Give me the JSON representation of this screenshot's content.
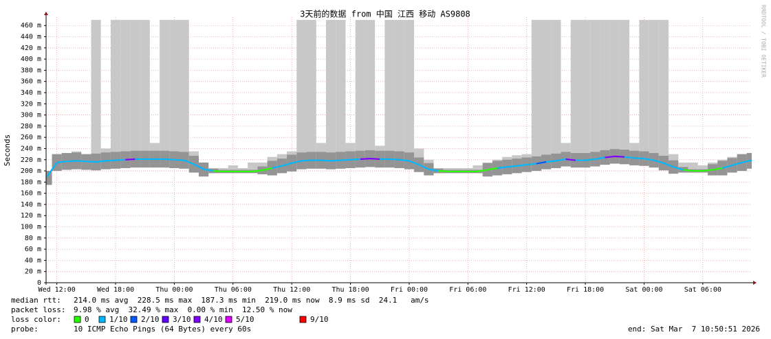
{
  "chart_data": {
    "type": "smokeping",
    "title": "3天前的数据 from 中国 江西 移动 AS9808",
    "ylabel": "Seconds",
    "watermark": "RRDTOOL / TOBI OETIKER",
    "xlim": [
      -1.1,
      71
    ],
    "xticks": [
      {
        "value": 0,
        "label": "Wed 12:00"
      },
      {
        "value": 6,
        "label": "Wed 18:00"
      },
      {
        "value": 12,
        "label": "Thu 00:00"
      },
      {
        "value": 18,
        "label": "Thu 06:00"
      },
      {
        "value": 24,
        "label": "Thu 12:00"
      },
      {
        "value": 30,
        "label": "Thu 18:00"
      },
      {
        "value": 36,
        "label": "Fri 00:00"
      },
      {
        "value": 42,
        "label": "Fri 06:00"
      },
      {
        "value": 48,
        "label": "Fri 12:00"
      },
      {
        "value": 54,
        "label": "Fri 18:00"
      },
      {
        "value": 60,
        "label": "Sat 00:00"
      },
      {
        "value": 66,
        "label": "Sat 06:00"
      }
    ],
    "ylim": [
      0,
      475
    ],
    "yticks": [
      0,
      {
        "value": 20,
        "label": "20 m"
      },
      {
        "value": 40,
        "label": "40 m"
      },
      {
        "value": 60,
        "label": "60 m"
      },
      {
        "value": 80,
        "label": "80 m"
      },
      {
        "value": 100,
        "label": "100 m"
      },
      {
        "value": 120,
        "label": "120 m"
      },
      {
        "value": 140,
        "label": "140 m"
      },
      {
        "value": 160,
        "label": "160 m"
      },
      {
        "value": 180,
        "label": "180 m"
      },
      {
        "value": 200,
        "label": "200 m"
      },
      {
        "value": 220,
        "label": "220 m"
      },
      {
        "value": 240,
        "label": "240 m"
      },
      {
        "value": 260,
        "label": "260 m"
      },
      {
        "value": 280,
        "label": "280 m"
      },
      {
        "value": 300,
        "label": "300 m"
      },
      {
        "value": 320,
        "label": "320 m"
      },
      {
        "value": 340,
        "label": "340 m"
      },
      {
        "value": 360,
        "label": "360 m"
      },
      {
        "value": 380,
        "label": "380 m"
      },
      {
        "value": 400,
        "label": "400 m"
      },
      {
        "value": 420,
        "label": "420 m"
      },
      {
        "value": 440,
        "label": "440 m"
      },
      {
        "value": 460,
        "label": "460 m"
      }
    ],
    "grid": true,
    "x": [
      -1,
      0,
      1,
      2,
      3,
      4,
      5,
      6,
      7,
      8,
      9,
      10,
      11,
      12,
      13,
      14,
      15,
      16,
      17,
      18,
      19,
      20,
      21,
      22,
      23,
      24,
      25,
      26,
      27,
      28,
      29,
      30,
      31,
      32,
      33,
      34,
      35,
      36,
      37,
      38,
      39,
      40,
      41,
      42,
      43,
      44,
      45,
      46,
      47,
      48,
      49,
      50,
      51,
      52,
      53,
      54,
      55,
      56,
      57,
      58,
      59,
      60,
      61,
      62,
      63,
      64,
      65,
      66,
      67,
      68,
      69,
      70,
      71
    ],
    "values": [
      190,
      215,
      217,
      218,
      217,
      216,
      218,
      219,
      220,
      221,
      221,
      221,
      221,
      220,
      219,
      212,
      203,
      200,
      199,
      199,
      199,
      199,
      201,
      205,
      209,
      214,
      218,
      219,
      219,
      218,
      219,
      220,
      221,
      222,
      221,
      221,
      220,
      218,
      211,
      203,
      200,
      199,
      199,
      199,
      199,
      202,
      205,
      207,
      209,
      211,
      213,
      216,
      218,
      221,
      219,
      219,
      221,
      224,
      226,
      225,
      223,
      222,
      219,
      214,
      207,
      202,
      200,
      200,
      202,
      205,
      210,
      215,
      219
    ],
    "point_colors": [
      "#00b8ff",
      "#00b8ff",
      "#00b8ff",
      "#00b8ff",
      "#00b8ff",
      "#00b8ff",
      "#00b8ff",
      "#00b8ff",
      "#7e00ff",
      "#00b8ff",
      "#00b8ff",
      "#00b8ff",
      "#00b8ff",
      "#00b8ff",
      "#00b8ff",
      "#00b8ff",
      "#00b8ff",
      "#26ff00",
      "#26ff00",
      "#26ff00",
      "#26ff00",
      "#26ff00",
      "#26ff00",
      "#00b8ff",
      "#00b8ff",
      "#00b8ff",
      "#00b8ff",
      "#00b8ff",
      "#00b8ff",
      "#00b8ff",
      "#00b8ff",
      "#00b8ff",
      "#7e00ff",
      "#7e00ff",
      "#00b8ff",
      "#00b8ff",
      "#00b8ff",
      "#00b8ff",
      "#00b8ff",
      "#00b8ff",
      "#26ff00",
      "#26ff00",
      "#26ff00",
      "#26ff00",
      "#26ff00",
      "#26ff00",
      "#00b8ff",
      "#00b8ff",
      "#00b8ff",
      "#00b8ff",
      "#0059ff",
      "#00b8ff",
      "#00b8ff",
      "#7e00ff",
      "#00b8ff",
      "#00b8ff",
      "#00b8ff",
      "#7e00ff",
      "#7e00ff",
      "#00b8ff",
      "#00b8ff",
      "#00b8ff",
      "#00b8ff",
      "#00b8ff",
      "#00b8ff",
      "#26ff00",
      "#26ff00",
      "#26ff00",
      "#26ff00",
      "#00b8ff",
      "#00b8ff",
      "#00b8ff",
      "#00b8ff"
    ],
    "smoke": {
      "low": [
        175,
        200,
        202,
        203,
        202,
        201,
        203,
        204,
        205,
        206,
        206,
        206,
        206,
        205,
        204,
        197,
        190,
        196,
        196,
        196,
        196,
        196,
        194,
        192,
        196,
        199,
        203,
        204,
        204,
        203,
        204,
        205,
        206,
        207,
        206,
        206,
        205,
        203,
        198,
        192,
        196,
        196,
        196,
        196,
        196,
        190,
        192,
        194,
        196,
        198,
        200,
        203,
        205,
        208,
        206,
        206,
        208,
        211,
        213,
        212,
        210,
        209,
        206,
        201,
        195,
        197,
        197,
        197,
        192,
        192,
        197,
        200,
        204
      ],
      "high": [
        200,
        230,
        232,
        235,
        230,
        470,
        240,
        470,
        470,
        470,
        470,
        250,
        470,
        470,
        470,
        235,
        215,
        205,
        205,
        210,
        205,
        215,
        215,
        225,
        230,
        235,
        470,
        470,
        250,
        470,
        470,
        250,
        470,
        470,
        245,
        470,
        470,
        470,
        240,
        220,
        205,
        205,
        205,
        205,
        210,
        215,
        220,
        225,
        228,
        230,
        470,
        470,
        470,
        250,
        470,
        470,
        470,
        470,
        470,
        470,
        250,
        470,
        470,
        470,
        230,
        215,
        215,
        210,
        215,
        220,
        225,
        230,
        232
      ],
      "color": "#c8c8c8"
    },
    "legend": {
      "median_label": "median rtt:",
      "median_text": "214.0 ms avg  228.5 ms max  187.3 ms min  219.0 ms now  8.9 ms sd  24.1   am/s",
      "loss_label": "packet loss:",
      "loss_text": "9.98 % avg  32.49 % max  0.00 % min  12.50 % now",
      "color_label": "loss color:",
      "loss_colors": [
        {
          "label": "0",
          "color": "#26ff00"
        },
        {
          "label": "1/10",
          "color": "#00b8ff"
        },
        {
          "label": "2/10",
          "color": "#0059ff"
        },
        {
          "label": "3/10",
          "color": "#5e00ff"
        },
        {
          "label": "4/10",
          "color": "#7e00ff"
        },
        {
          "label": "5/10",
          "color": "#dd00ff"
        },
        {
          "label": "9/10",
          "color": "#ff0000"
        }
      ],
      "probe_label": "probe:",
      "probe_text": "10 ICMP Echo Pings (64 Bytes) every 60s",
      "end_text": "end: Sat Mar  7 10:50:51 2026"
    }
  }
}
